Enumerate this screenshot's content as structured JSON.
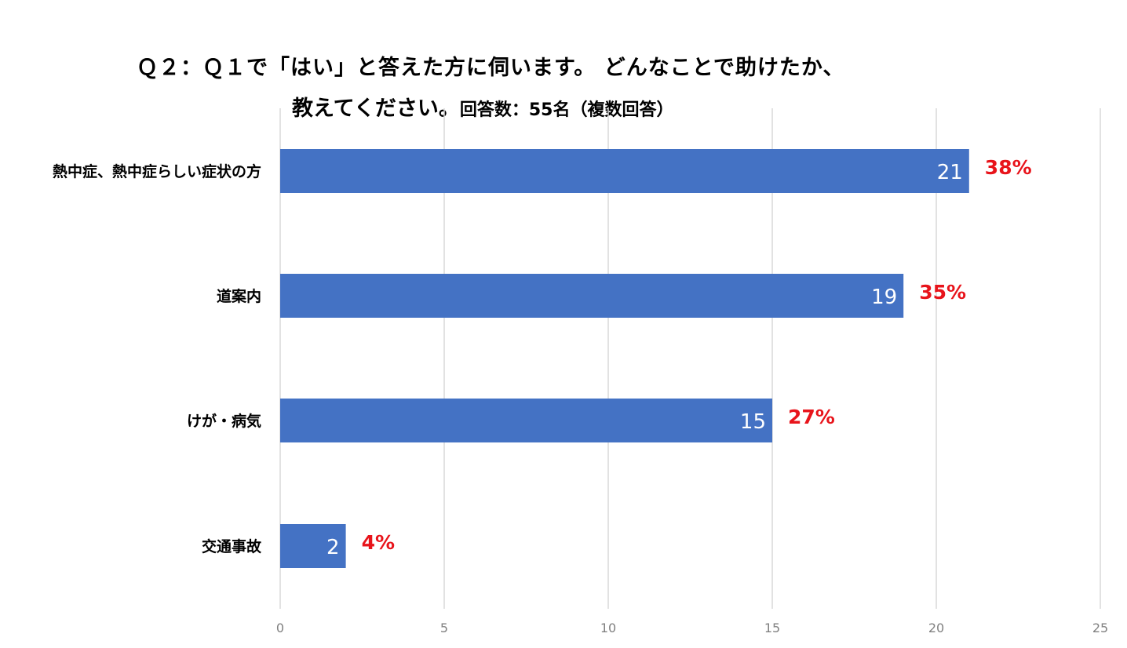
{
  "chart_data": {
    "type": "bar",
    "orientation": "horizontal",
    "title": {
      "line1": "Ｑ２：Ｑ１で「はい」と答えた方に伺います。 どんなことで助けたか、",
      "line2": "教えてください。",
      "line2_suffix": "回答数：55名（複数回答）"
    },
    "categories": [
      "熱中症、熱中症らしい症状の方",
      "道案内",
      "けが・病気",
      "交通事故"
    ],
    "values": [
      21,
      19,
      15,
      2
    ],
    "percent_labels": [
      "38%",
      "35%",
      "27%",
      "4%"
    ],
    "xlim": [
      0,
      25
    ],
    "x_ticks": [
      "0",
      "5",
      "10",
      "15",
      "20",
      "25"
    ],
    "grid": true,
    "legend": "none",
    "colors": {
      "bar": "#4472C4",
      "value_label": "#FFFFFF",
      "percent_label": "#E8141B",
      "grid": "#D9D9D9",
      "tick_label": "#808080",
      "category_label": "#000000"
    }
  }
}
